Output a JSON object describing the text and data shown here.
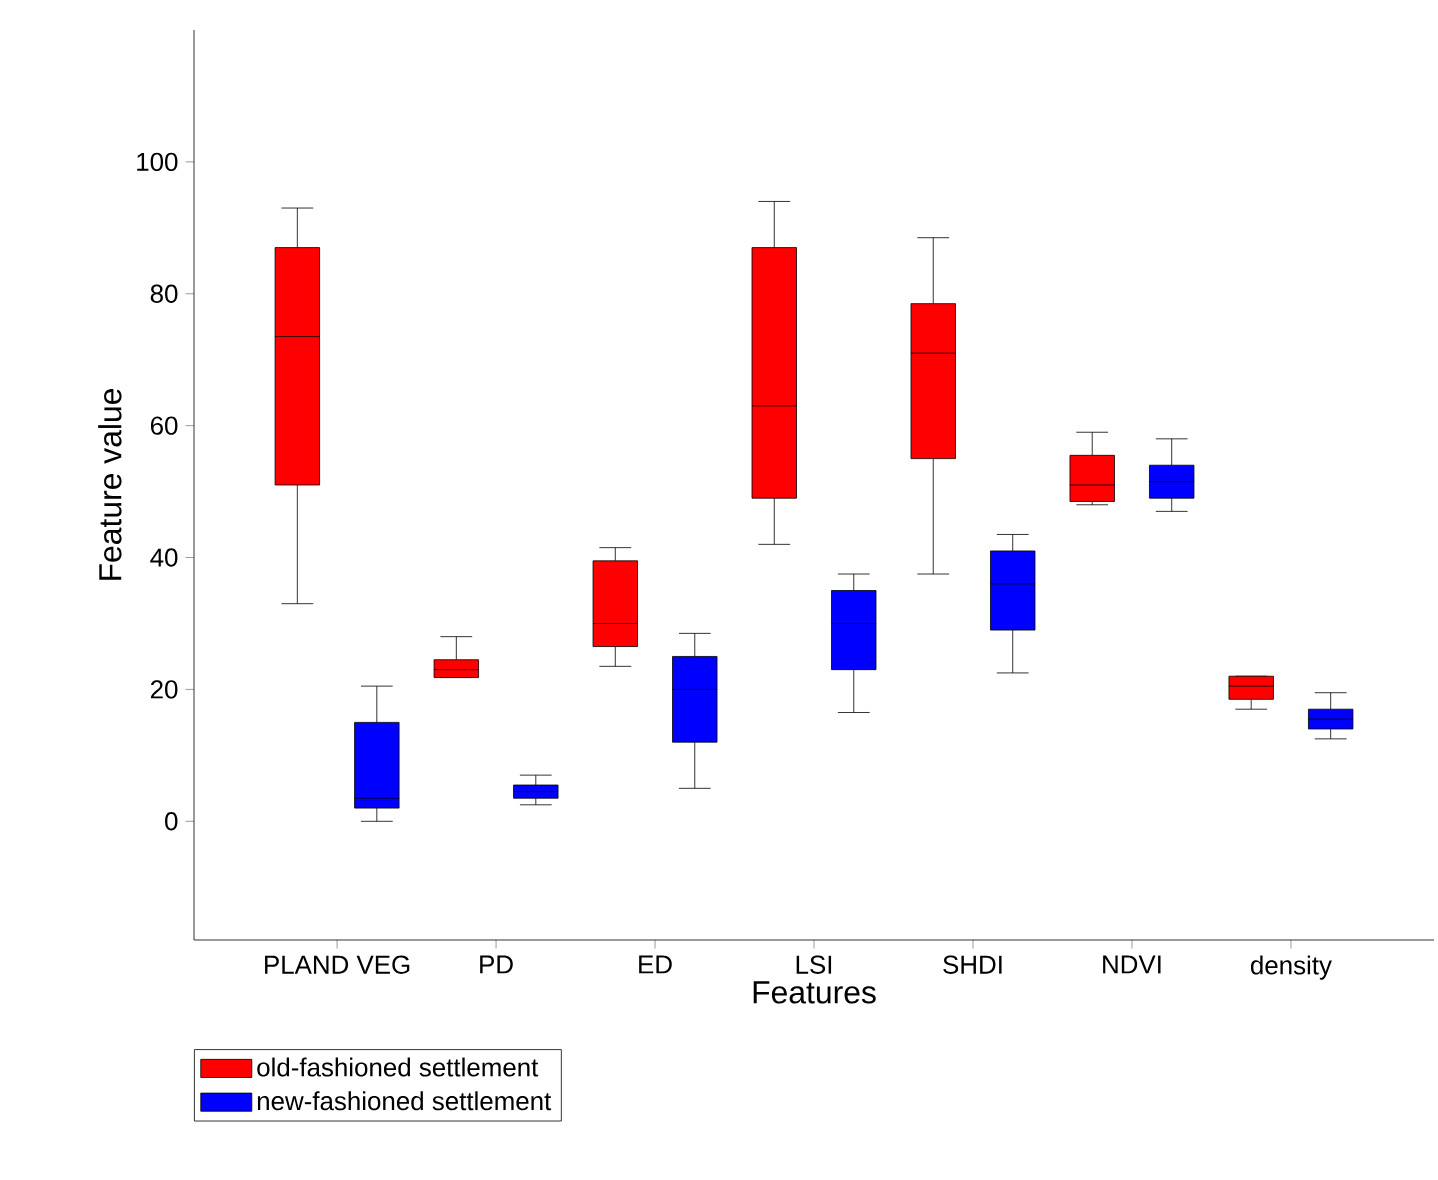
{
  "chart_data": {
    "type": "box",
    "xlabel": "Features",
    "ylabel": "Feature value",
    "categories": [
      "PLAND VEG",
      "PD",
      "ED",
      "LSI",
      "SHDI",
      "NDVI",
      "density"
    ],
    "ylim": [
      -18,
      120
    ],
    "yticks": [
      0,
      20,
      40,
      60,
      80,
      100
    ],
    "legend": "bottom left",
    "series": [
      {
        "name": "old-fashioned settlement",
        "color": "#ff0000",
        "boxes": [
          {
            "low": 33,
            "q1": 51,
            "median": 73.5,
            "q3": 87,
            "high": 93
          },
          {
            "low": 21.8,
            "q1": 21.8,
            "median": 23,
            "q3": 24.5,
            "high": 28
          },
          {
            "low": 23.5,
            "q1": 26.5,
            "median": 30,
            "q3": 39.5,
            "high": 41.5
          },
          {
            "low": 42,
            "q1": 49,
            "median": 63,
            "q3": 87,
            "high": 94
          },
          {
            "low": 37.5,
            "q1": 55,
            "median": 71,
            "q3": 78.5,
            "high": 88.5
          },
          {
            "low": 48,
            "q1": 48.5,
            "median": 51,
            "q3": 55.5,
            "high": 59
          },
          {
            "low": 17,
            "q1": 18.5,
            "median": 20.5,
            "q3": 22,
            "high": 22
          }
        ]
      },
      {
        "name": "new-fashioned settlement",
        "color": "#0000ff",
        "boxes": [
          {
            "low": 0,
            "q1": 2,
            "median": 3.5,
            "q3": 15,
            "high": 20.5
          },
          {
            "low": 2.5,
            "q1": 3.5,
            "median": 4.5,
            "q3": 5.5,
            "high": 7
          },
          {
            "low": 5,
            "q1": 12,
            "median": 20,
            "q3": 25,
            "high": 28.5
          },
          {
            "low": 16.5,
            "q1": 23,
            "median": 30,
            "q3": 35,
            "high": 37.5
          },
          {
            "low": 22.5,
            "q1": 29,
            "median": 36,
            "q3": 41,
            "high": 43.5
          },
          {
            "low": 47,
            "q1": 49,
            "median": 51.5,
            "q3": 54,
            "high": 58
          },
          {
            "low": 12.5,
            "q1": 14,
            "median": 15.5,
            "q3": 17,
            "high": 19.5
          }
        ]
      }
    ]
  }
}
